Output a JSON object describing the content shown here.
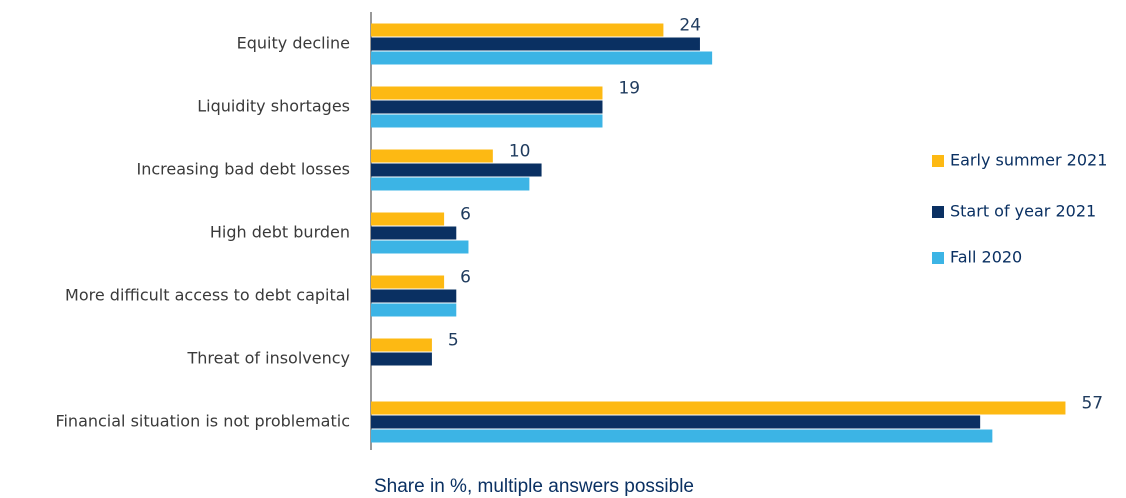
{
  "chart_data": {
    "type": "bar",
    "orientation": "horizontal",
    "x_label": "Share in %, multiple answers possible",
    "categories": [
      "Equity decline",
      "Liquidity shortages",
      "Increasing bad debt losses",
      "High debt burden",
      "More difficult access to debt capital",
      "Threat of insolvency",
      "Financial situation is not problematic"
    ],
    "series": [
      {
        "name": "Early summer 2021",
        "color": "#fdb913",
        "values": [
          24,
          19,
          10,
          6,
          6,
          5,
          57
        ],
        "show_labels": true
      },
      {
        "name": "Start of year 2021",
        "color": "#0a3062",
        "values": [
          27,
          19,
          14,
          7,
          7,
          5,
          50
        ],
        "show_labels": false
      },
      {
        "name": "Fall 2020",
        "color": "#3cb4e5",
        "values": [
          28,
          19,
          13,
          8,
          7,
          null,
          51
        ],
        "show_labels": false
      }
    ],
    "xlim": [
      0,
      60
    ],
    "legend": "right"
  }
}
